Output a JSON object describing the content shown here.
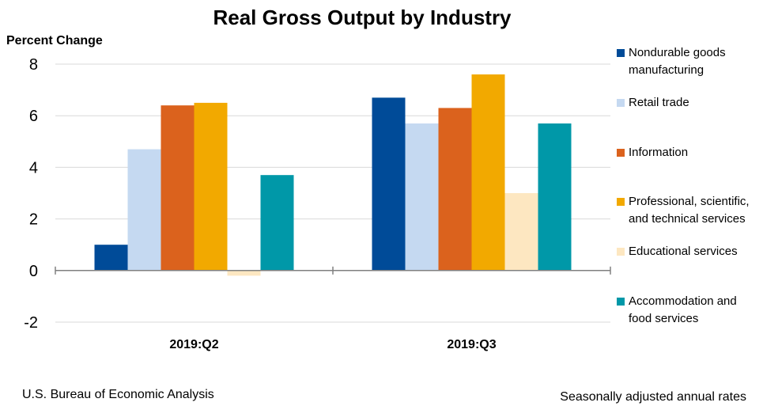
{
  "chart_data": {
    "type": "bar",
    "title": "Real Gross Output by Industry",
    "ylabel": "Percent Change",
    "xlabel": "",
    "categories": [
      "2019:Q2",
      "2019:Q3"
    ],
    "ylim": [
      -2,
      8
    ],
    "yticks": [
      -2,
      0,
      2,
      4,
      6,
      8
    ],
    "grid": true,
    "legend_position": "right",
    "series": [
      {
        "name": "Nondurable goods manufacturing",
        "color": "#004B98",
        "values": [
          1.0,
          6.7
        ]
      },
      {
        "name": "Retail trade",
        "color": "#C5D9F1",
        "values": [
          4.7,
          5.7
        ]
      },
      {
        "name": "Information",
        "color": "#DB621D",
        "values": [
          6.4,
          6.3
        ]
      },
      {
        "name": "Professional, scientific, and technical services",
        "color": "#F2A900",
        "values": [
          6.5,
          7.6
        ]
      },
      {
        "name": "Educational services",
        "color": "#FDE7C1",
        "values": [
          -0.2,
          3.0
        ]
      },
      {
        "name": "Accommodation and food services",
        "color": "#0098A8",
        "values": [
          3.7,
          5.7
        ]
      }
    ]
  },
  "legend_lines": [
    [
      "Nondurable goods",
      "manufacturing"
    ],
    [
      "Retail trade"
    ],
    [
      "Information"
    ],
    [
      "Professional, scientific,",
      "and technical services"
    ],
    [
      "Educational services"
    ],
    [
      "Accommodation and",
      "food services"
    ]
  ],
  "footer": {
    "source": "U.S. Bureau of Economic Analysis",
    "note": "Seasonally adjusted annual rates"
  },
  "colors": {
    "grid": "#D9D9D9",
    "axis": "#808080",
    "text": "#000000"
  }
}
